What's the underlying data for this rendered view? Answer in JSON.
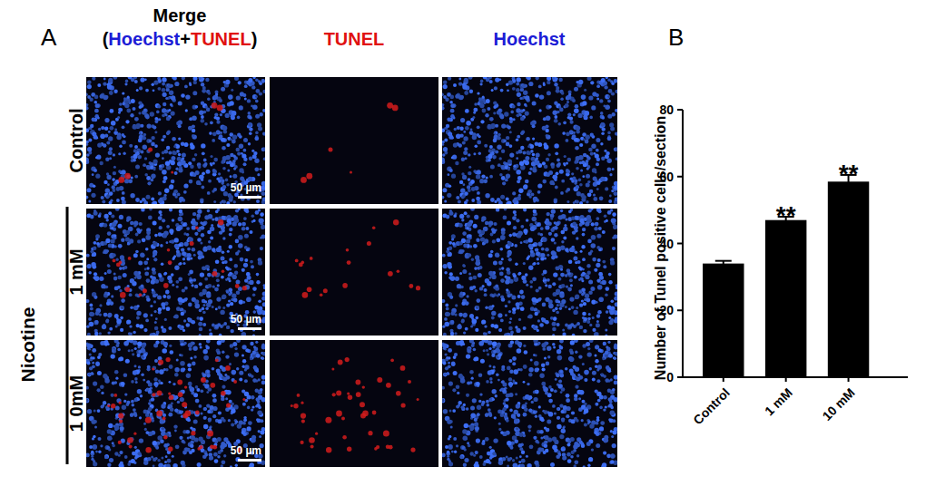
{
  "panel_a": {
    "label": "A",
    "merge_title": "Merge",
    "merge_subtitle_parts": [
      "(",
      "Hoechst",
      "+",
      "TUNEL",
      ")"
    ],
    "tunel_title": "TUNEL",
    "hoechst_title": "Hoechst",
    "rows": [
      "Control",
      "1 mM",
      "1 0mM"
    ],
    "group_label": "Nicotine",
    "scale_bar": "50 µm"
  },
  "chart_data": {
    "type": "bar",
    "panel_label": "B",
    "y_label": "Number of Tunel positive cells/section",
    "categories": [
      "Control",
      "1 mM",
      "10 mM"
    ],
    "values": [
      34,
      47,
      58.5
    ],
    "errors": [
      0.8,
      1.0,
      2.0
    ],
    "significance": [
      null,
      "**",
      "**"
    ],
    "color": "#000000",
    "ylim": [
      0,
      80
    ],
    "yticks": [
      0,
      20,
      40,
      60,
      80
    ],
    "grid": false
  }
}
